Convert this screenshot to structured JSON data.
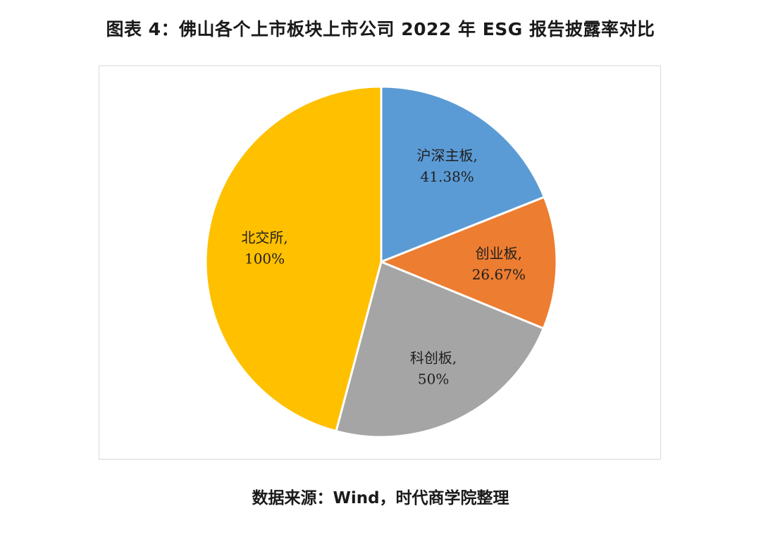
{
  "title": "图表 4：佛山各个上市板块上市公司 2022 年 ESG 报告披露率对比",
  "source": "数据来源：Wind，时代商学院整理",
  "chart_data": {
    "type": "pie",
    "title": "图表 4：佛山各个上市板块上市公司 2022 年 ESG 报告披露率对比",
    "start_angle_deg": 0,
    "direction": "clockwise",
    "slices": [
      {
        "name": "沪深主板",
        "value": 41.38,
        "label": "沪深主板,",
        "value_label": "41.38%",
        "color": "#5b9bd5"
      },
      {
        "name": "创业板",
        "value": 26.67,
        "label": "创业板,",
        "value_label": "26.67%",
        "color": "#ed7d31"
      },
      {
        "name": "科创板",
        "value": 50,
        "label": "科创板,",
        "value_label": "50%",
        "color": "#a5a5a5"
      },
      {
        "name": "北交所",
        "value": 100,
        "label": "北交所,",
        "value_label": "100%",
        "color": "#ffc000"
      }
    ]
  }
}
